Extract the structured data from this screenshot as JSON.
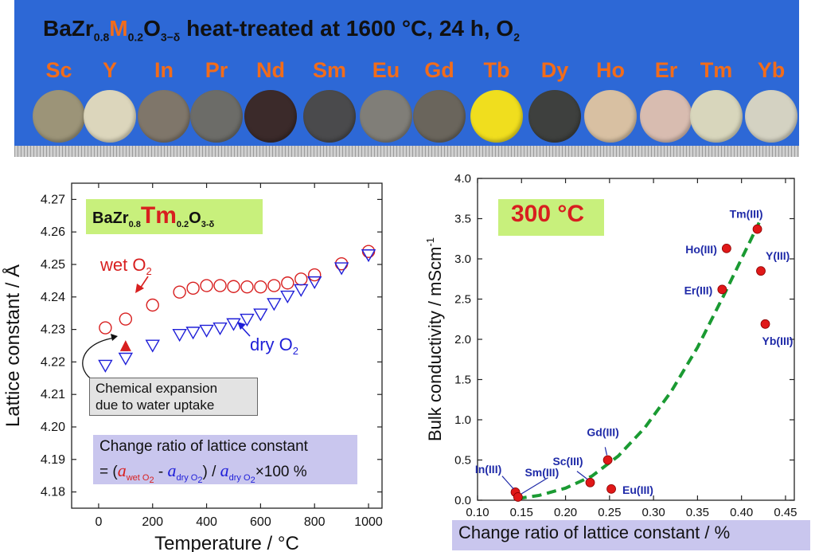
{
  "banner": {
    "title_prefix": "BaZr",
    "title_sub1": "0.8",
    "title_m": "M",
    "title_sub2": "0.2",
    "title_o": "O",
    "title_sub3": "3−δ",
    "title_suffix": " heat-treated at 1600 °C, 24 h, O",
    "title_sub4": "2",
    "elements": [
      "Sc",
      "Y",
      "In",
      "Pr",
      "Nd",
      "Sm",
      "Eu",
      "Gd",
      "Tb",
      "Dy",
      "Ho",
      "Er",
      "Tm",
      "Yb"
    ],
    "disk_colors": [
      "#9c9478",
      "#dcd6bc",
      "#7f766a",
      "#6c6c68",
      "#3b2a2a",
      "#4a4a4c",
      "#807e78",
      "#6a655c",
      "#f0de1e",
      "#3e403e",
      "#d8c0a2",
      "#d8bcb0",
      "#d8d6bc",
      "#d4d2c2"
    ],
    "background_color": "#2d68d6",
    "label_color": "#f26c1a"
  },
  "left_chart": {
    "title": {
      "prefix": "BaZr",
      "sub1": "0.8",
      "tm": "Tm",
      "sub2": "0.2",
      "o": "O",
      "sub3": "3-δ"
    },
    "wet_label": "wet O",
    "wet_sub": "2",
    "dry_label": "dry O",
    "dry_sub": "2",
    "annotation_line1": "Chemical expansion",
    "annotation_line2": "due to water uptake",
    "ratio_title": "Change ratio of lattice constant",
    "ratio_formula": {
      "eq": "= (",
      "a": "a",
      "wet_sub": "wet O",
      "wet_sub2": "2",
      "minus": " - ",
      "dry_sub": "dry O",
      "dry_sub2": "2",
      "close": ") / ",
      "tail": "×100 %"
    }
  },
  "right_chart": {
    "title": "300 °C"
  },
  "chart_data": [
    {
      "type": "scatter",
      "xlabel": "Temperature / °C",
      "ylabel": "Lattice constant / Å",
      "xlim": [
        -100,
        1050
      ],
      "ylim": [
        4.175,
        4.275
      ],
      "xticks": [
        0,
        200,
        400,
        600,
        800,
        1000
      ],
      "yticks": [
        4.18,
        4.19,
        4.2,
        4.21,
        4.22,
        4.23,
        4.24,
        4.25,
        4.26,
        4.27
      ],
      "grid": false,
      "series": [
        {
          "name": "wet O2",
          "color": "#d81f1f",
          "marker": "circle",
          "x": [
            25,
            100,
            200,
            300,
            350,
            400,
            450,
            500,
            550,
            600,
            650,
            700,
            750,
            800,
            900,
            1000
          ],
          "y": [
            4.2305,
            4.2332,
            4.2375,
            4.2415,
            4.2427,
            4.2435,
            4.2435,
            4.2432,
            4.2431,
            4.2431,
            4.2435,
            4.2443,
            4.2455,
            4.2468,
            4.2502,
            4.254
          ]
        },
        {
          "name": "dry O2",
          "color": "#1f1fd8",
          "marker": "triangle-down",
          "x": [
            25,
            100,
            200,
            300,
            350,
            400,
            450,
            500,
            550,
            600,
            650,
            700,
            750,
            800,
            900,
            1000
          ],
          "y": [
            4.219,
            4.2212,
            4.2252,
            4.2285,
            4.2292,
            4.2298,
            4.2305,
            4.2318,
            4.2332,
            4.2348,
            4.238,
            4.2403,
            4.2423,
            4.2447,
            4.249,
            4.253
          ]
        }
      ]
    },
    {
      "type": "scatter",
      "xlabel": "Change ratio of lattice constant / %",
      "ylabel": "Bulk conductivity / mScm",
      "ylabel_sup": "-1",
      "xlim": [
        0.1,
        0.46
      ],
      "ylim": [
        0.0,
        4.0
      ],
      "xticks": [
        0.1,
        0.15,
        0.2,
        0.25,
        0.3,
        0.35,
        0.4,
        0.45
      ],
      "yticks": [
        0.0,
        0.5,
        1.0,
        1.5,
        2.0,
        2.5,
        3.0,
        3.5,
        4.0
      ],
      "grid": false,
      "points": [
        {
          "label": "In(III)",
          "x": 0.143,
          "y": 0.1
        },
        {
          "label": "Sm(III)",
          "x": 0.146,
          "y": 0.04
        },
        {
          "label": "Sc(III)",
          "x": 0.228,
          "y": 0.22
        },
        {
          "label": "Gd(III)",
          "x": 0.248,
          "y": 0.5
        },
        {
          "label": "Eu(III)",
          "x": 0.252,
          "y": 0.14
        },
        {
          "label": "Er(III)",
          "x": 0.378,
          "y": 2.62
        },
        {
          "label": "Ho(III)",
          "x": 0.383,
          "y": 3.13
        },
        {
          "label": "Tm(III)",
          "x": 0.418,
          "y": 3.37
        },
        {
          "label": "Y(III)",
          "x": 0.422,
          "y": 2.85
        },
        {
          "label": "Yb(III)",
          "x": 0.427,
          "y": 2.19
        }
      ],
      "trend": {
        "color": "#1a9a32",
        "style": "dashed",
        "x": [
          0.145,
          0.17,
          0.2,
          0.23,
          0.26,
          0.29,
          0.32,
          0.35,
          0.38,
          0.4,
          0.42
        ],
        "y": [
          0.02,
          0.06,
          0.15,
          0.3,
          0.55,
          0.9,
          1.35,
          1.9,
          2.55,
          3.0,
          3.45
        ]
      }
    }
  ]
}
